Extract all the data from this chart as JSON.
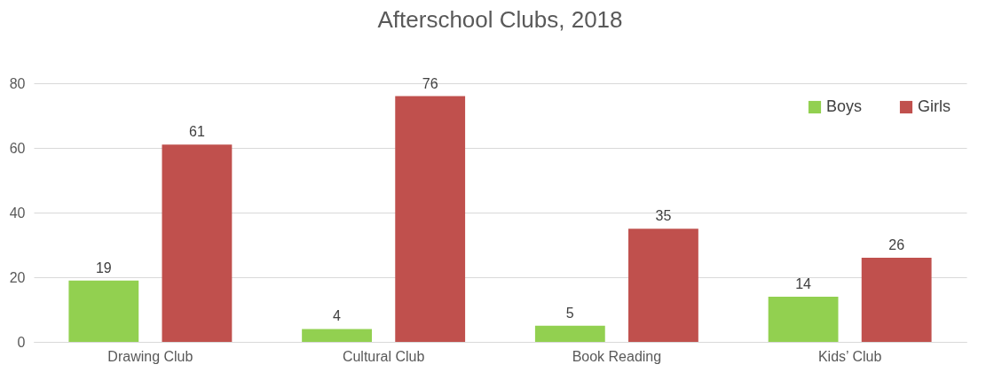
{
  "chart_data": {
    "type": "bar",
    "title": "Afterschool Clubs, 2018",
    "categories": [
      "Drawing Club",
      "Cultural Club",
      "Book Reading",
      "Kids’ Club"
    ],
    "series": [
      {
        "name": "Boys",
        "color": "#92d050",
        "values": [
          19,
          4,
          5,
          14
        ]
      },
      {
        "name": "Girls",
        "color": "#c0504d",
        "values": [
          61,
          76,
          35,
          26
        ]
      }
    ],
    "ylim": [
      0,
      80
    ],
    "yticks": [
      0,
      20,
      40,
      60,
      80
    ],
    "grid": "y",
    "legend": "top right",
    "data_labels": true
  }
}
